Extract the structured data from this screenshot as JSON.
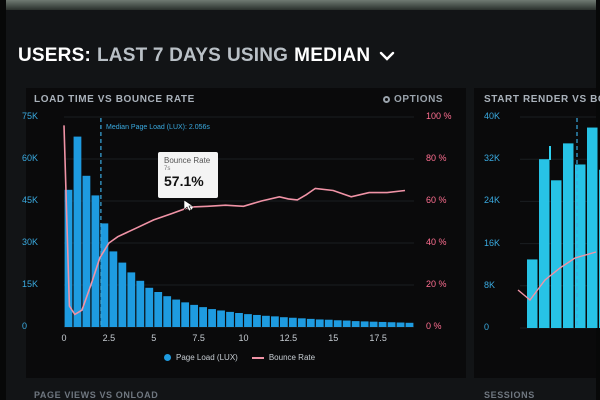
{
  "header": {
    "prefix": "USERS:",
    "mid1": "LAST 7 DAYS",
    "mid2": "USING",
    "mid3": "MEDIAN"
  },
  "panel_main": {
    "title": "LOAD TIME VS BOUNCE RATE",
    "options_label": "OPTIONS",
    "median_label": "Median Page Load (LUX): 2.056s",
    "left_axis": [
      "75K",
      "60K",
      "45K",
      "30K",
      "15K",
      "0"
    ],
    "right_axis": [
      "100 %",
      "80 %",
      "60 %",
      "40 %",
      "20 %",
      "0 %"
    ],
    "x_ticks": [
      "0",
      "2.5",
      "5",
      "7.5",
      "10",
      "12.5",
      "15",
      "17.5"
    ],
    "legend": {
      "bars": "Page Load (LUX)",
      "line": "Bounce Rate"
    },
    "tooltip": {
      "label": "Bounce Rate",
      "sub": "7s",
      "value": "57.1%"
    }
  },
  "panel_right": {
    "title": "START RENDER VS BO",
    "left_axis": [
      "40K",
      "32K",
      "24K",
      "16K",
      "8K",
      "0"
    ]
  },
  "bottom": {
    "left_title": "PAGE VIEWS VS ONLOAD",
    "right_title": "SESSIONS"
  },
  "colors": {
    "bar": "#1e9be0",
    "bar_right": "#27c3e6",
    "line": "#f093a6",
    "accent_pink": "#ff6f91"
  },
  "chart_data": [
    {
      "type": "bar",
      "title": "LOAD TIME VS BOUNCE RATE",
      "xlabel": "",
      "ylabel": "",
      "ylim": [
        0,
        75000
      ],
      "y2lim": [
        0,
        100
      ],
      "x_tick_labels": [
        "0",
        "2.5",
        "5",
        "7.5",
        "10",
        "12.5",
        "15",
        "17.5"
      ],
      "series": [
        {
          "name": "Page Load (LUX)",
          "kind": "bar",
          "x": [
            0.25,
            0.75,
            1.25,
            1.75,
            2.25,
            2.75,
            3.25,
            3.75,
            4.25,
            4.75,
            5.25,
            5.75,
            6.25,
            6.75,
            7.25,
            7.75,
            8.25,
            8.75,
            9.25,
            9.75,
            10.25,
            10.75,
            11.25,
            11.75,
            12.25,
            12.75,
            13.25,
            13.75,
            14.25,
            14.75,
            15.25,
            15.75,
            16.25,
            16.75,
            17.25,
            17.75,
            18.25,
            18.75,
            19.25
          ],
          "values": [
            49000,
            68000,
            54000,
            47000,
            37000,
            27000,
            23000,
            19500,
            16500,
            14000,
            12500,
            11000,
            9800,
            8800,
            7900,
            7100,
            6400,
            5900,
            5400,
            5000,
            4600,
            4300,
            4000,
            3800,
            3500,
            3300,
            3100,
            2900,
            2700,
            2600,
            2400,
            2300,
            2100,
            2000,
            1900,
            1800,
            1700,
            1600,
            1500
          ]
        },
        {
          "name": "Bounce Rate",
          "kind": "line",
          "axis": "right",
          "x": [
            0,
            0.3,
            0.6,
            1.0,
            1.5,
            2.0,
            2.5,
            3.0,
            4.0,
            5.0,
            6.0,
            7.0,
            8.0,
            9.0,
            10.0,
            11.0,
            12.0,
            12.5,
            13.0,
            13.5,
            14.0,
            15.0,
            16.0,
            17.0,
            18.0,
            19.0
          ],
          "values": [
            96,
            10,
            6,
            8,
            20,
            33,
            40,
            43,
            47,
            51,
            54,
            57.1,
            57.5,
            58,
            57.5,
            60,
            62,
            61,
            60.5,
            63,
            66,
            65,
            62,
            64,
            64,
            65
          ]
        }
      ]
    },
    {
      "type": "bar",
      "title": "START RENDER VS BO",
      "ylim": [
        0,
        40000
      ],
      "series": [
        {
          "name": "",
          "kind": "bar",
          "values": [
            13000,
            32000,
            28000,
            35000,
            31000,
            38000,
            30000,
            26000
          ]
        }
      ]
    }
  ]
}
